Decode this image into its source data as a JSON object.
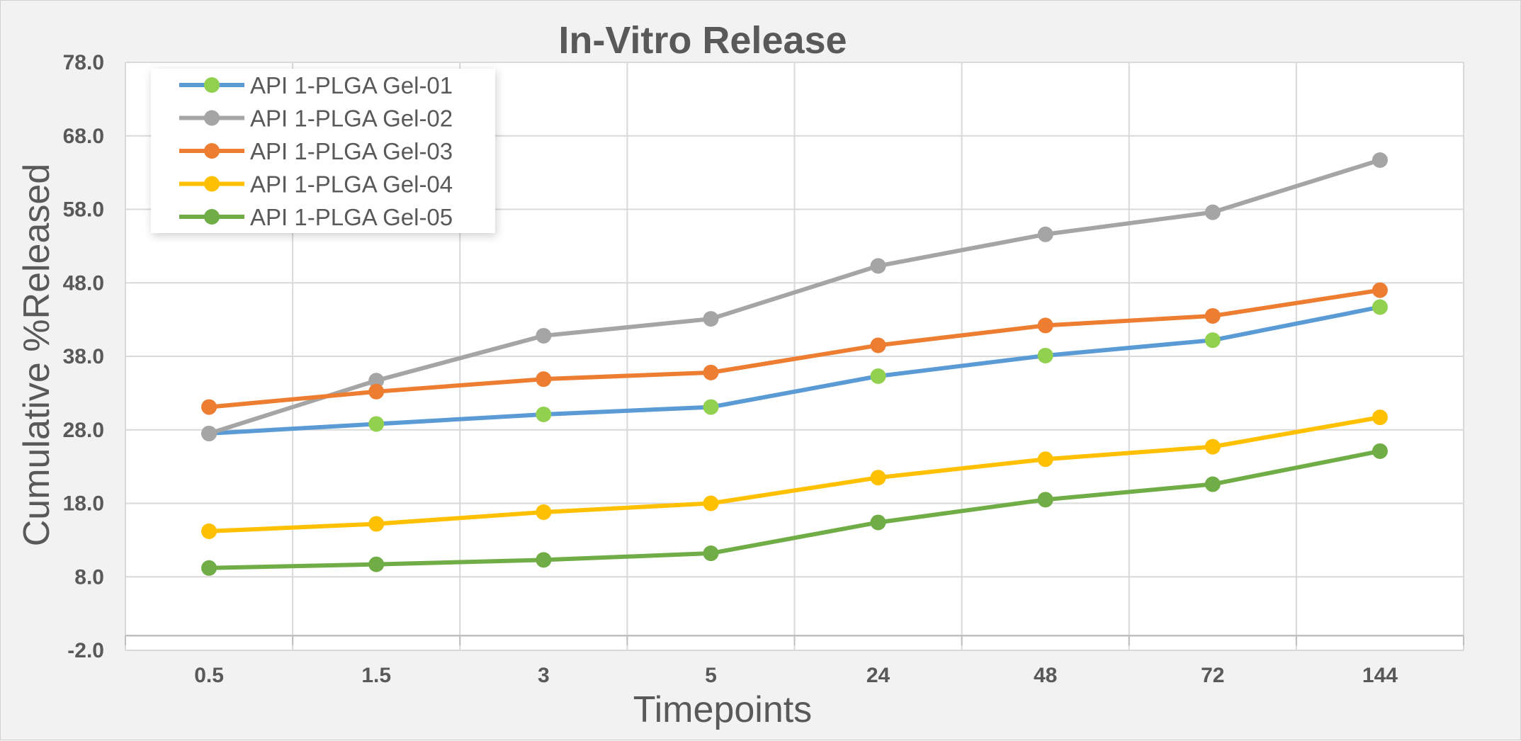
{
  "chart_data": {
    "type": "line",
    "title": "In-Vitro Release",
    "xlabel": "Timepoints",
    "ylabel": "Cumulative %Released",
    "categories": [
      "0.5",
      "1.5",
      "3",
      "5",
      "24",
      "48",
      "72",
      "144"
    ],
    "yticks": [
      "-2.0",
      "8.0",
      "18.0",
      "28.0",
      "38.0",
      "48.0",
      "58.0",
      "68.0",
      "78.0"
    ],
    "ylim": [
      -2,
      78
    ],
    "grid": true,
    "legend": "top-left",
    "series": [
      {
        "name": "API 1-PLGA Gel-01",
        "line_color": "#5b9bd5",
        "marker_color": "#92d050",
        "values": [
          27.5,
          28.8,
          30.1,
          31.1,
          35.3,
          38.1,
          40.2,
          44.7
        ]
      },
      {
        "name": "API 1-PLGA Gel-02",
        "line_color": "#a5a5a5",
        "marker_color": "#a5a5a5",
        "values": [
          27.5,
          34.7,
          40.8,
          43.1,
          50.3,
          54.6,
          57.6,
          64.7
        ]
      },
      {
        "name": "API 1-PLGA Gel-03",
        "line_color": "#ed7d31",
        "marker_color": "#ed7d31",
        "values": [
          31.1,
          33.2,
          34.9,
          35.8,
          39.5,
          42.2,
          43.5,
          47.0
        ]
      },
      {
        "name": "API 1-PLGA Gel-04",
        "line_color": "#ffc000",
        "marker_color": "#ffc000",
        "values": [
          14.2,
          15.2,
          16.8,
          18.0,
          21.5,
          24.0,
          25.7,
          29.7
        ]
      },
      {
        "name": "API 1-PLGA Gel-05",
        "line_color": "#70ad47",
        "marker_color": "#70ad47",
        "values": [
          9.2,
          9.7,
          10.3,
          11.2,
          15.4,
          18.5,
          20.6,
          25.1
        ]
      }
    ]
  }
}
